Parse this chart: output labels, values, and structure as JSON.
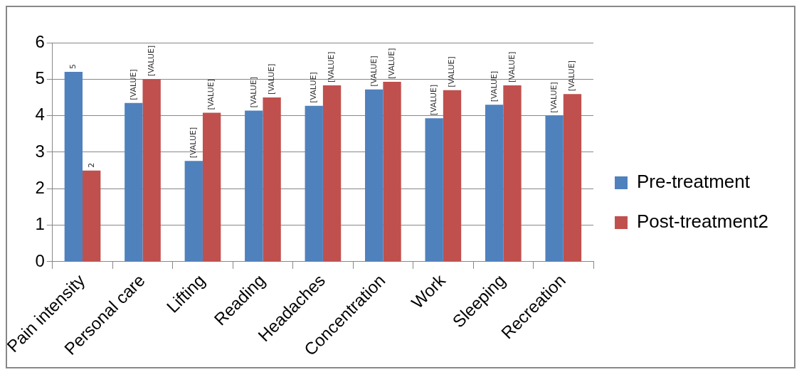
{
  "chart_data": {
    "type": "bar",
    "categories": [
      "Pain intensity",
      "Personal care",
      "Lifting",
      "Reading",
      "Headaches",
      "Concentration",
      "Work",
      "Sleeping",
      "Recreation"
    ],
    "series": [
      {
        "name": "Pre-treatment",
        "color": "#4f81bd",
        "values": [
          5.2,
          4.35,
          2.76,
          4.14,
          4.27,
          4.72,
          3.93,
          4.3,
          4.0
        ],
        "value_labels": [
          "5",
          "[VALUE]",
          "[VALUE]",
          "[VALUE]",
          "[VALUE]",
          "[VALUE]",
          "[VALUE]",
          "[VALUE]",
          "[VALUE]"
        ]
      },
      {
        "name": "Post-treatment2",
        "color": "#c0504d",
        "values": [
          2.5,
          5.0,
          4.08,
          4.5,
          4.83,
          4.93,
          4.7,
          4.83,
          4.59
        ],
        "value_labels": [
          "2",
          "[VALUE]",
          "[VALUE]",
          "[VALUE]",
          "[VALUE]",
          "[VALUE]",
          "[VALUE]",
          "[VALUE]",
          "[VALUE]"
        ]
      }
    ],
    "ylim": [
      0,
      6
    ],
    "yticks": [
      0,
      1,
      2,
      3,
      4,
      5,
      6
    ],
    "grid": "y",
    "legend": "right"
  }
}
